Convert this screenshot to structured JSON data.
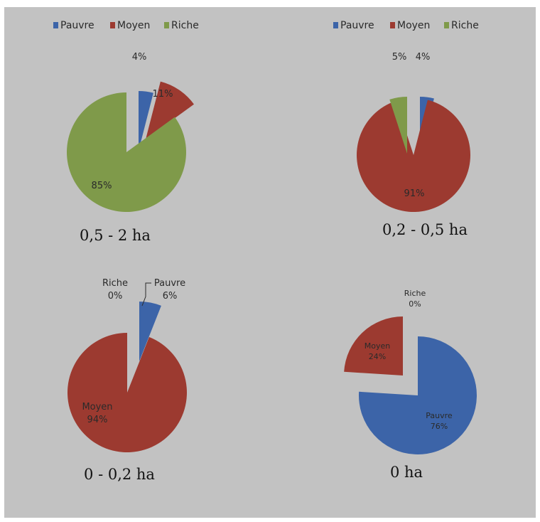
{
  "colors": {
    "Pauvre": "#3c64a8",
    "Moyen": "#9c3a30",
    "Riche": "#7f9a4a",
    "background": "#c2c2c2"
  },
  "chart_data": [
    {
      "type": "pie",
      "title": "0,5 - 2 ha",
      "legend": [
        "Pauvre",
        "Moyen",
        "Riche"
      ],
      "legend_position": "top",
      "slices": [
        {
          "category": "Pauvre",
          "value": 4,
          "label": "4%"
        },
        {
          "category": "Moyen",
          "value": 11,
          "label": "11%"
        },
        {
          "category": "Riche",
          "value": 85,
          "label": "85%"
        }
      ]
    },
    {
      "type": "pie",
      "title": "0,2 - 0,5 ha",
      "legend": [
        "Pauvre",
        "Moyen",
        "Riche"
      ],
      "legend_position": "top",
      "slices": [
        {
          "category": "Pauvre",
          "value": 4,
          "label": "4%"
        },
        {
          "category": "Moyen",
          "value": 91,
          "label": "91%"
        },
        {
          "category": "Riche",
          "value": 5,
          "label": "5%"
        }
      ]
    },
    {
      "type": "pie",
      "title": "0 - 0,2 ha",
      "slices": [
        {
          "category": "Pauvre",
          "value": 6,
          "label": "Pauvre\n6%"
        },
        {
          "category": "Moyen",
          "value": 94,
          "label": "Moyen\n94%"
        },
        {
          "category": "Riche",
          "value": 0,
          "label": "Riche\n0%"
        }
      ]
    },
    {
      "type": "pie",
      "title": "0 ha",
      "slices": [
        {
          "category": "Pauvre",
          "value": 76,
          "label": "Pauvre\n76%"
        },
        {
          "category": "Moyen",
          "value": 24,
          "label": "Moyen\n24%"
        },
        {
          "category": "Riche",
          "value": 0,
          "label": "Riche\n0%"
        }
      ]
    }
  ]
}
